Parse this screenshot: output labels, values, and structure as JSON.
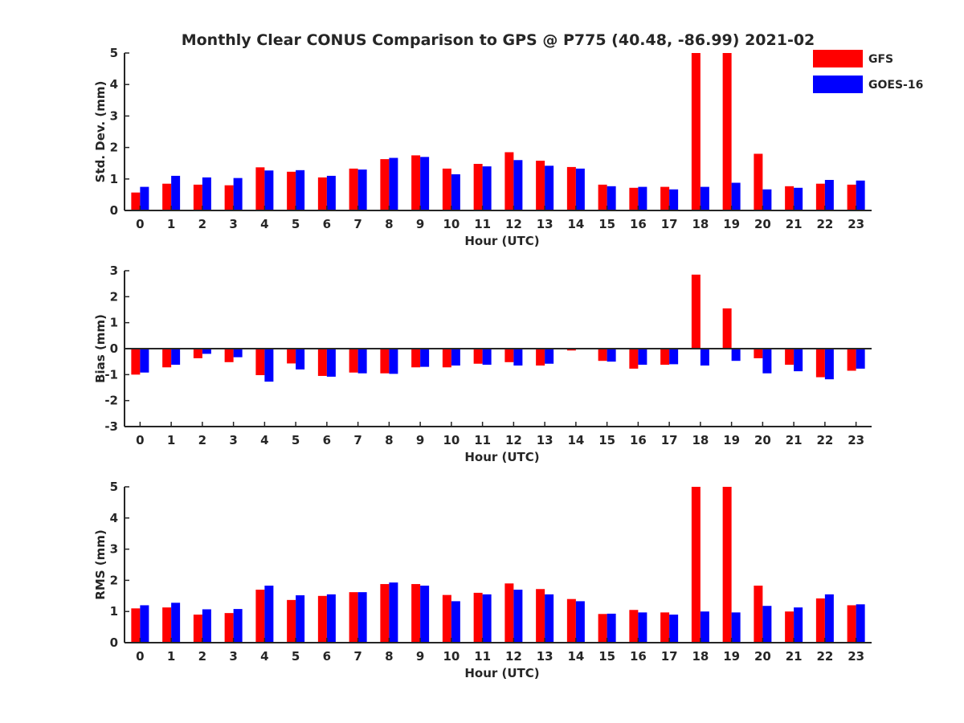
{
  "title": "Monthly Clear CONUS Comparison to GPS @ P775 (40.48, -86.99) 2021-02",
  "legend": [
    {
      "name": "GFS",
      "color": "#ff0000"
    },
    {
      "name": "GOES-16",
      "color": "#0000ff"
    }
  ],
  "chart_data": [
    {
      "type": "bar",
      "xlabel": "Hour (UTC)",
      "ylabel": "Std. Dev. (mm)",
      "ylim": [
        0,
        5
      ],
      "yticks": [
        0,
        1,
        2,
        3,
        4,
        5
      ],
      "categories": [
        "0",
        "1",
        "2",
        "3",
        "4",
        "5",
        "6",
        "7",
        "8",
        "9",
        "10",
        "11",
        "12",
        "13",
        "14",
        "15",
        "16",
        "17",
        "18",
        "19",
        "20",
        "21",
        "22",
        "23"
      ],
      "legend_placement": "top-right",
      "series": [
        {
          "name": "GFS",
          "color": "#ff0000",
          "values": [
            0.57,
            0.85,
            0.82,
            0.8,
            1.37,
            1.23,
            1.05,
            1.33,
            1.63,
            1.75,
            1.33,
            1.48,
            1.85,
            1.58,
            1.38,
            0.82,
            0.72,
            0.75,
            5.0,
            5.0,
            1.8,
            0.77,
            0.85,
            0.82
          ]
        },
        {
          "name": "GOES-16",
          "color": "#0000ff",
          "values": [
            0.75,
            1.1,
            1.05,
            1.03,
            1.27,
            1.28,
            1.1,
            1.3,
            1.67,
            1.7,
            1.15,
            1.4,
            1.6,
            1.42,
            1.33,
            0.77,
            0.75,
            0.67,
            0.75,
            0.88,
            0.67,
            0.72,
            0.97,
            0.95
          ]
        }
      ]
    },
    {
      "type": "bar",
      "xlabel": "Hour (UTC)",
      "ylabel": "Bias (mm)",
      "ylim": [
        -3,
        3
      ],
      "yticks": [
        -3,
        -2,
        -1,
        0,
        1,
        2,
        3
      ],
      "categories": [
        "0",
        "1",
        "2",
        "3",
        "4",
        "5",
        "6",
        "7",
        "8",
        "9",
        "10",
        "11",
        "12",
        "13",
        "14",
        "15",
        "16",
        "17",
        "18",
        "19",
        "20",
        "21",
        "22",
        "23"
      ],
      "series": [
        {
          "name": "GFS",
          "color": "#ff0000",
          "values": [
            -1.0,
            -0.72,
            -0.37,
            -0.52,
            -1.02,
            -0.57,
            -1.05,
            -0.92,
            -0.95,
            -0.72,
            -0.72,
            -0.58,
            -0.52,
            -0.65,
            -0.07,
            -0.47,
            -0.77,
            -0.62,
            2.85,
            1.55,
            -0.37,
            -0.62,
            -1.1,
            -0.85
          ]
        },
        {
          "name": "GOES-16",
          "color": "#0000ff",
          "values": [
            -0.92,
            -0.62,
            -0.2,
            -0.33,
            -1.27,
            -0.8,
            -1.08,
            -0.95,
            -0.97,
            -0.7,
            -0.65,
            -0.62,
            -0.65,
            -0.58,
            -0.02,
            -0.5,
            -0.62,
            -0.6,
            -0.65,
            -0.47,
            -0.95,
            -0.87,
            -1.18,
            -0.77
          ]
        }
      ]
    },
    {
      "type": "bar",
      "xlabel": "Hour (UTC)",
      "ylabel": "RMS (mm)",
      "ylim": [
        0,
        5
      ],
      "yticks": [
        0,
        1,
        2,
        3,
        4,
        5
      ],
      "categories": [
        "0",
        "1",
        "2",
        "3",
        "4",
        "5",
        "6",
        "7",
        "8",
        "9",
        "10",
        "11",
        "12",
        "13",
        "14",
        "15",
        "16",
        "17",
        "18",
        "19",
        "20",
        "21",
        "22",
        "23"
      ],
      "series": [
        {
          "name": "GFS",
          "color": "#ff0000",
          "values": [
            1.1,
            1.13,
            0.9,
            0.95,
            1.7,
            1.37,
            1.5,
            1.62,
            1.88,
            1.88,
            1.53,
            1.6,
            1.9,
            1.72,
            1.4,
            0.92,
            1.05,
            0.97,
            5.0,
            5.0,
            1.83,
            1.0,
            1.42,
            1.2
          ]
        },
        {
          "name": "GOES-16",
          "color": "#0000ff",
          "values": [
            1.2,
            1.28,
            1.07,
            1.08,
            1.83,
            1.52,
            1.55,
            1.62,
            1.93,
            1.83,
            1.33,
            1.55,
            1.7,
            1.55,
            1.33,
            0.93,
            0.97,
            0.9,
            1.0,
            0.97,
            1.18,
            1.13,
            1.55,
            1.23
          ]
        }
      ]
    }
  ]
}
